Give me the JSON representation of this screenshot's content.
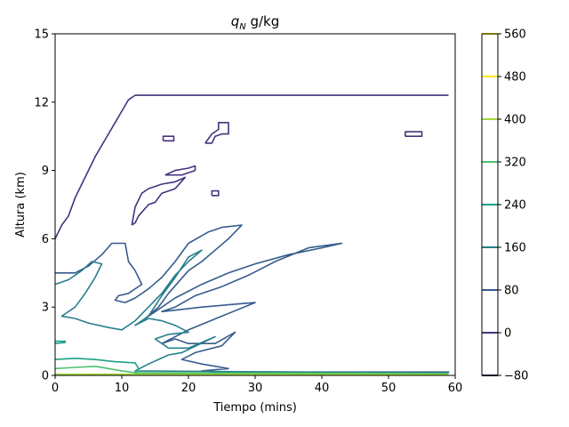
{
  "chart_data": {
    "type": "contour",
    "title": {
      "symbol": "q",
      "subscript": "N",
      "unit": " g/kg"
    },
    "xlabel": "Tiempo (mins)",
    "ylabel": "Altura (km)",
    "xlim": [
      0,
      60
    ],
    "ylim": [
      0,
      15
    ],
    "xticks": [
      0,
      10,
      20,
      30,
      40,
      50,
      60
    ],
    "yticks": [
      0,
      3,
      6,
      9,
      12,
      15
    ],
    "grid": false,
    "colorbar": {
      "placement": "right",
      "levels": [
        -80,
        0,
        80,
        160,
        240,
        320,
        400,
        480,
        560
      ],
      "colors": [
        "#440154",
        "#46327e",
        "#365c8d",
        "#277f8e",
        "#1fa187",
        "#4ac16d",
        "#a0da39",
        "#fde725",
        "#fde725"
      ]
    },
    "contours": [
      {
        "level": 0,
        "color": "#46327e",
        "points": [
          [
            0,
            6.0
          ],
          [
            1,
            6.6
          ],
          [
            2,
            7.0
          ],
          [
            3,
            7.8
          ],
          [
            4,
            8.4
          ],
          [
            5,
            9.0
          ],
          [
            6,
            9.6
          ],
          [
            7,
            10.1
          ],
          [
            8,
            10.6
          ],
          [
            9,
            11.1
          ],
          [
            10,
            11.6
          ],
          [
            11,
            12.1
          ],
          [
            12,
            12.3
          ],
          [
            20,
            12.3
          ],
          [
            40,
            12.3
          ],
          [
            59,
            12.3
          ]
        ]
      },
      {
        "level": 0,
        "color": "#46327e",
        "points": [
          [
            16.2,
            10.3
          ],
          [
            17.8,
            10.3
          ],
          [
            17.8,
            10.5
          ],
          [
            16.2,
            10.5
          ],
          [
            16.2,
            10.3
          ]
        ]
      },
      {
        "level": 0,
        "color": "#46327e",
        "points": [
          [
            22.5,
            10.2
          ],
          [
            23.5,
            10.6
          ],
          [
            24.5,
            10.8
          ],
          [
            24.5,
            11.1
          ],
          [
            26,
            11.1
          ],
          [
            26,
            10.6
          ],
          [
            25,
            10.6
          ],
          [
            24,
            10.5
          ],
          [
            23.5,
            10.2
          ],
          [
            22.5,
            10.2
          ]
        ]
      },
      {
        "level": 0,
        "color": "#46327e",
        "points": [
          [
            16.5,
            8.8
          ],
          [
            18,
            9.0
          ],
          [
            20,
            9.1
          ],
          [
            21,
            9.2
          ],
          [
            21,
            9.0
          ],
          [
            19,
            8.8
          ],
          [
            16.5,
            8.8
          ]
        ]
      },
      {
        "level": 0,
        "color": "#46327e",
        "points": [
          [
            11.5,
            6.6
          ],
          [
            12,
            7.4
          ],
          [
            13,
            8.0
          ],
          [
            14,
            8.2
          ],
          [
            16,
            8.4
          ],
          [
            18,
            8.5
          ],
          [
            19.5,
            8.7
          ],
          [
            18,
            8.2
          ],
          [
            16,
            8.0
          ],
          [
            15,
            7.6
          ],
          [
            14,
            7.5
          ],
          [
            12.5,
            7.0
          ],
          [
            12,
            6.7
          ],
          [
            11.5,
            6.6
          ]
        ]
      },
      {
        "level": 0,
        "color": "#46327e",
        "points": [
          [
            23.5,
            7.9
          ],
          [
            24.5,
            7.9
          ],
          [
            24.5,
            8.1
          ],
          [
            23.5,
            8.1
          ],
          [
            23.5,
            7.9
          ]
        ]
      },
      {
        "level": 0,
        "color": "#46327e",
        "points": [
          [
            52.5,
            10.5
          ],
          [
            55,
            10.5
          ],
          [
            55,
            10.7
          ],
          [
            52.5,
            10.7
          ],
          [
            52.5,
            10.5
          ]
        ]
      },
      {
        "level": 80,
        "color": "#365c8d",
        "points": [
          [
            0,
            4.5
          ],
          [
            3,
            4.5
          ],
          [
            5,
            4.8
          ],
          [
            7,
            5.3
          ],
          [
            8.5,
            5.8
          ],
          [
            10.5,
            5.8
          ],
          [
            11,
            5.0
          ],
          [
            12,
            4.6
          ],
          [
            13,
            4.0
          ],
          [
            11,
            3.6
          ],
          [
            9.5,
            3.5
          ],
          [
            9,
            3.3
          ],
          [
            10.5,
            3.2
          ],
          [
            12,
            3.4
          ],
          [
            14,
            3.8
          ],
          [
            16,
            4.3
          ],
          [
            18,
            5.0
          ],
          [
            20,
            5.8
          ],
          [
            23,
            6.3
          ],
          [
            25,
            6.5
          ],
          [
            28,
            6.6
          ],
          [
            26,
            6.0
          ],
          [
            24,
            5.5
          ],
          [
            22,
            5.0
          ],
          [
            20,
            4.6
          ],
          [
            17,
            3.6
          ],
          [
            15.5,
            3.0
          ],
          [
            13.5,
            2.5
          ],
          [
            15.5,
            2.9
          ],
          [
            18,
            3.4
          ],
          [
            22,
            4.0
          ],
          [
            26,
            4.5
          ],
          [
            30,
            4.9
          ],
          [
            35,
            5.3
          ],
          [
            40,
            5.6
          ],
          [
            43,
            5.8
          ],
          [
            38,
            5.6
          ],
          [
            33,
            5.0
          ],
          [
            29,
            4.4
          ],
          [
            25,
            3.9
          ],
          [
            21,
            3.5
          ],
          [
            18,
            3.0
          ],
          [
            16,
            2.8
          ],
          [
            19,
            2.9
          ],
          [
            22,
            3.0
          ],
          [
            26,
            3.1
          ],
          [
            30,
            3.2
          ],
          [
            25,
            2.6
          ],
          [
            20,
            2.0
          ],
          [
            16,
            1.4
          ],
          [
            18,
            1.6
          ],
          [
            20,
            1.4
          ],
          [
            24,
            1.4
          ],
          [
            27,
            1.9
          ],
          [
            25,
            1.3
          ],
          [
            21,
            1.0
          ],
          [
            19,
            0.7
          ],
          [
            22,
            0.5
          ],
          [
            26,
            0.3
          ],
          [
            22,
            0.2
          ],
          [
            25,
            0.15
          ],
          [
            59,
            0.15
          ],
          [
            59,
            0.1
          ]
        ]
      },
      {
        "level": 160,
        "color": "#277f8e",
        "points": [
          [
            0,
            4.0
          ],
          [
            2,
            4.2
          ],
          [
            4,
            4.6
          ],
          [
            5.5,
            5.0
          ],
          [
            7,
            4.9
          ],
          [
            6,
            4.3
          ],
          [
            4.5,
            3.6
          ],
          [
            3,
            3.0
          ],
          [
            1,
            2.6
          ],
          [
            3,
            2.5
          ],
          [
            5,
            2.3
          ],
          [
            8,
            2.1
          ],
          [
            10,
            2.0
          ],
          [
            12,
            2.4
          ],
          [
            14,
            3.0
          ],
          [
            16,
            3.6
          ],
          [
            18,
            4.4
          ],
          [
            20,
            5.0
          ],
          [
            22,
            5.5
          ],
          [
            20,
            5.2
          ],
          [
            18,
            4.3
          ],
          [
            16,
            3.5
          ],
          [
            14,
            2.6
          ],
          [
            12,
            2.2
          ],
          [
            14,
            2.5
          ],
          [
            16,
            2.4
          ],
          [
            18,
            2.2
          ],
          [
            20,
            1.9
          ],
          [
            17,
            1.8
          ],
          [
            15,
            1.6
          ],
          [
            17,
            1.2
          ],
          [
            20,
            1.2
          ],
          [
            24,
            1.7
          ],
          [
            19,
            1.0
          ],
          [
            17,
            0.9
          ],
          [
            14,
            0.5
          ],
          [
            12,
            0.2
          ],
          [
            59,
            0.1
          ]
        ]
      },
      {
        "level": 240,
        "color": "#1fa187",
        "points": [
          [
            0,
            1.4
          ],
          [
            1.5,
            1.45
          ],
          [
            1.5,
            1.5
          ],
          [
            0,
            1.5
          ]
        ]
      },
      {
        "level": 240,
        "color": "#1fa187",
        "points": [
          [
            0,
            0.7
          ],
          [
            3,
            0.75
          ],
          [
            6,
            0.7
          ],
          [
            9,
            0.6
          ],
          [
            12,
            0.55
          ],
          [
            12.5,
            0.3
          ],
          [
            12,
            0.1
          ],
          [
            59,
            0.1
          ]
        ]
      },
      {
        "level": 320,
        "color": "#4ac16d",
        "points": [
          [
            0,
            0.3
          ],
          [
            3,
            0.35
          ],
          [
            6,
            0.4
          ],
          [
            8,
            0.3
          ],
          [
            10,
            0.2
          ],
          [
            12,
            0.12
          ],
          [
            59,
            0.08
          ]
        ]
      },
      {
        "level": 400,
        "color": "#a0da39",
        "points": [
          [
            0,
            0.05
          ],
          [
            10,
            0.05
          ],
          [
            59,
            0.04
          ]
        ]
      }
    ]
  }
}
